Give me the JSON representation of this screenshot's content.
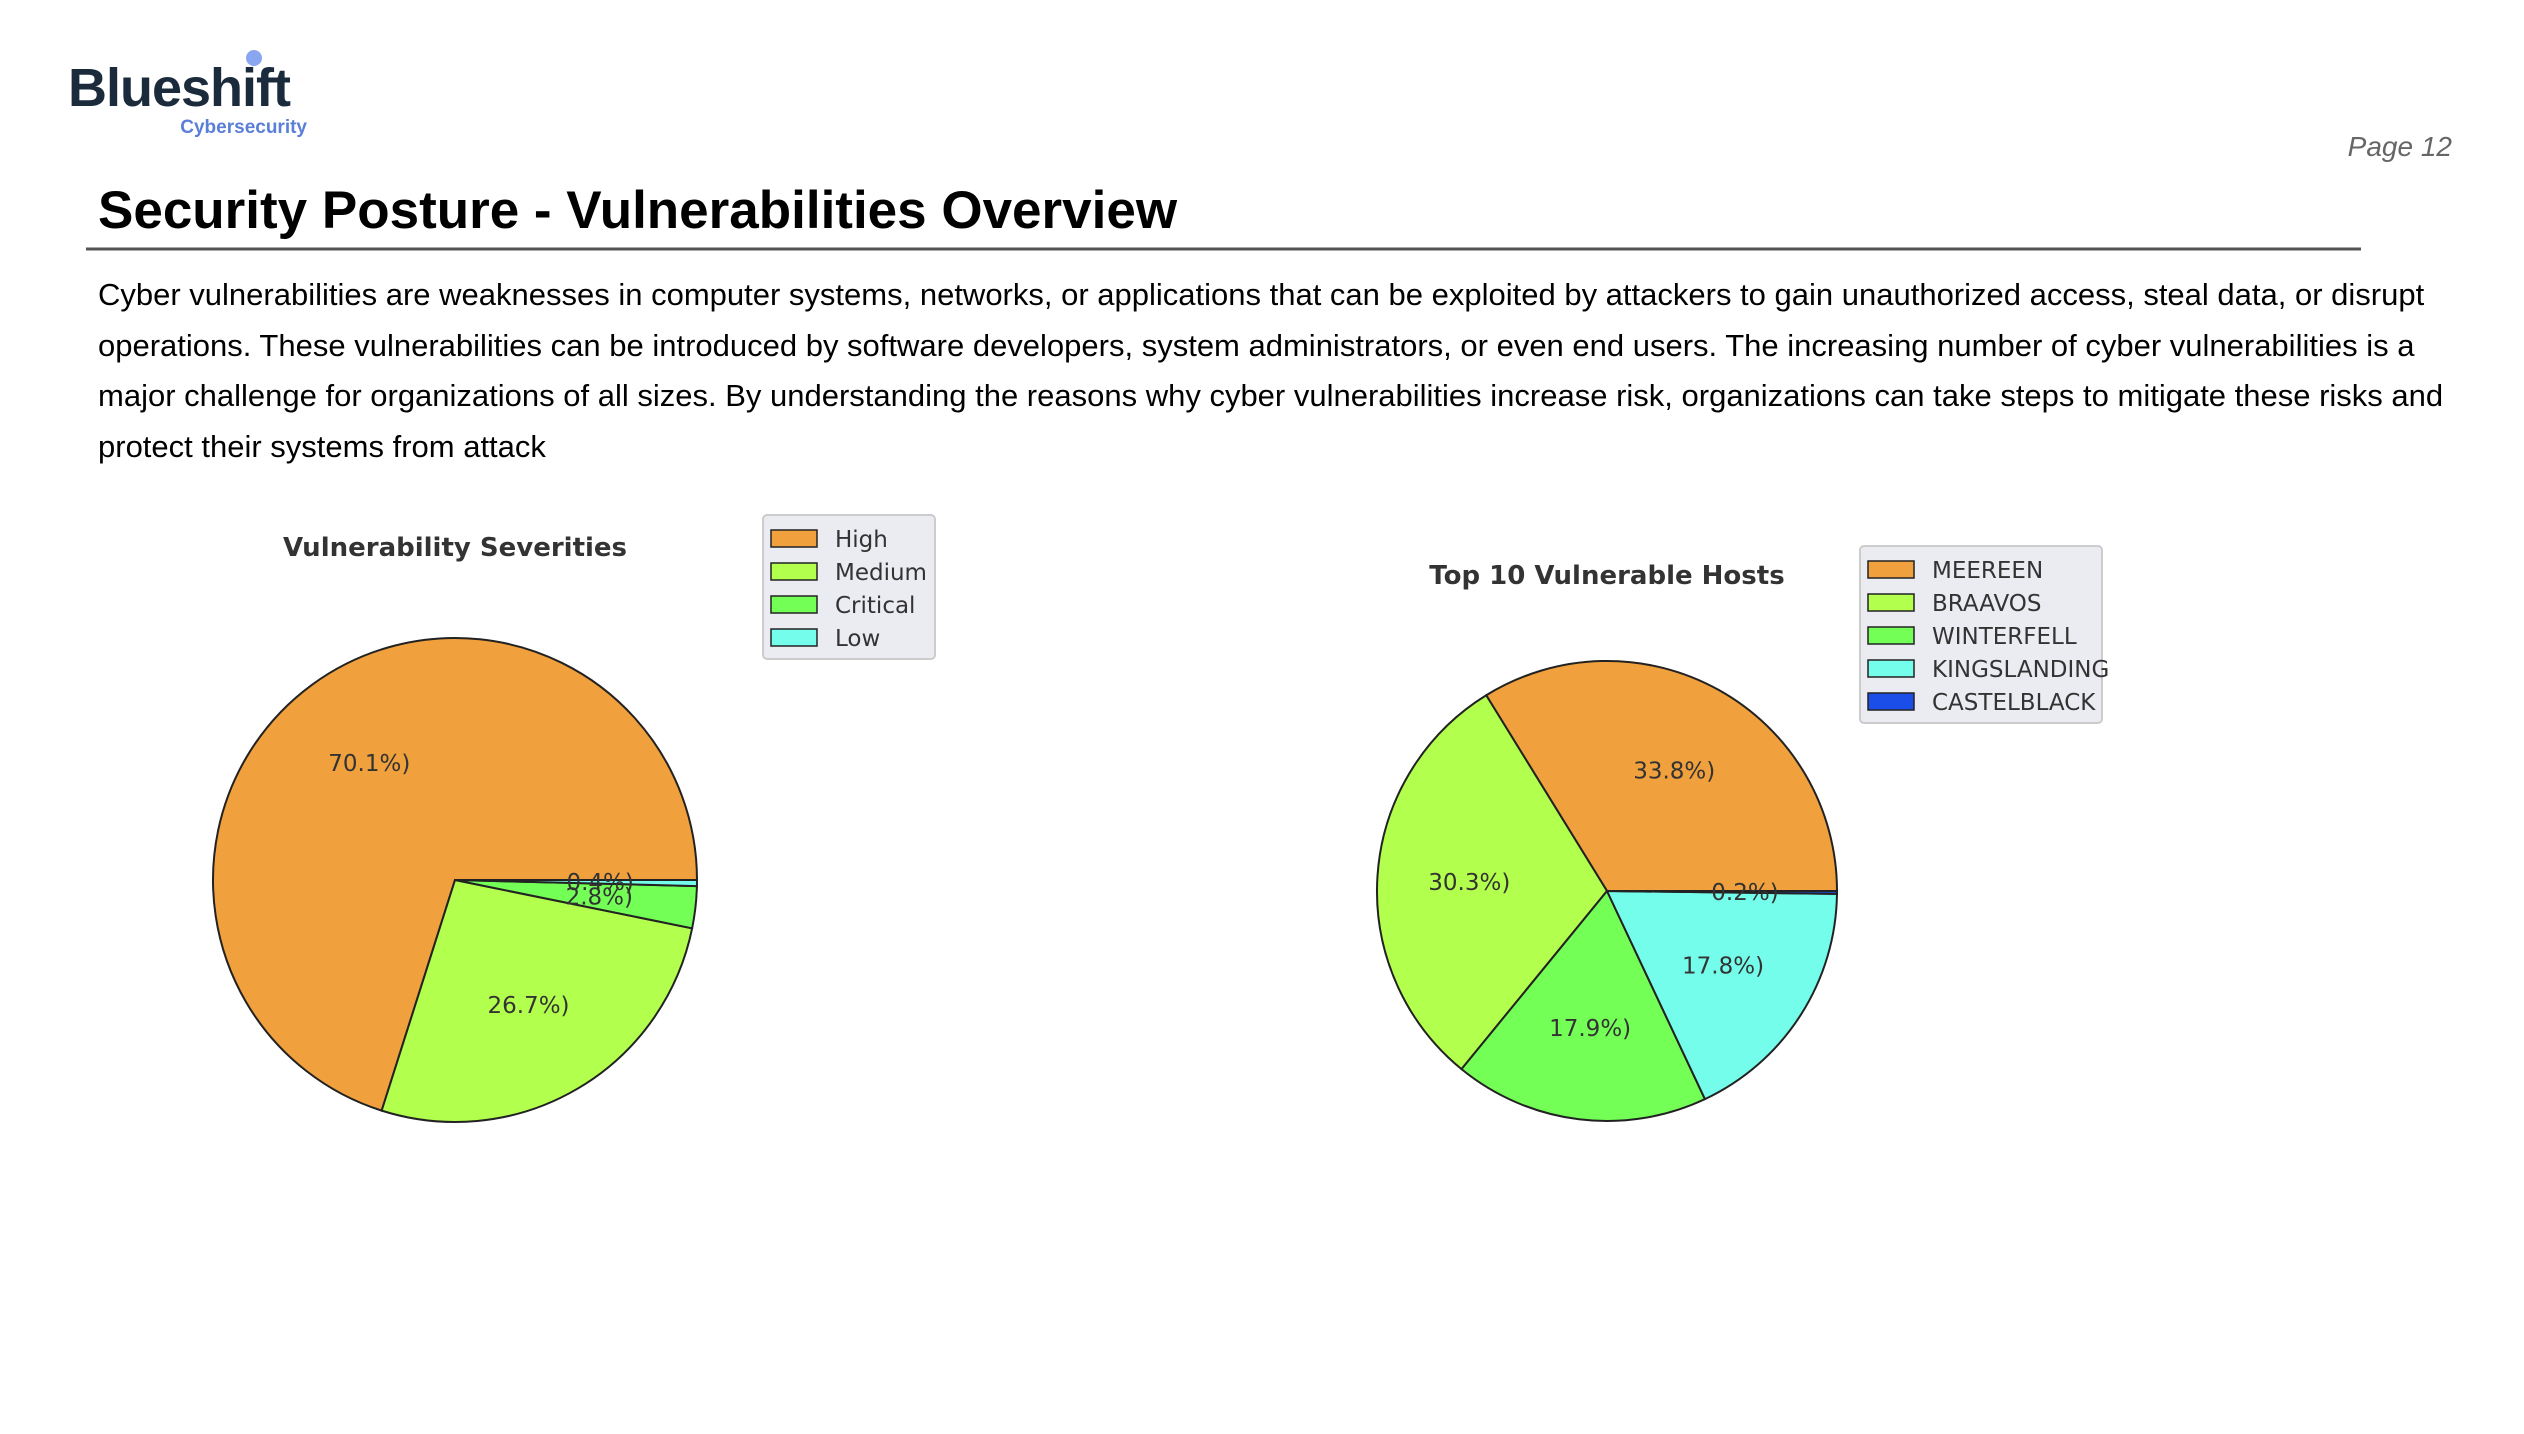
{
  "header": {
    "logo": "Blueshift",
    "logo_subtitle": "Cybersecurity",
    "page": "Page 12"
  },
  "title": "Security Posture - Vulnerabilities Overview",
  "paragraph": "Cyber vulnerabilities are weaknesses in computer systems, networks, or applications that can be exploited by attackers to gain unauthorized access, steal data, or disrupt operations. These vulnerabilities can be introduced by software developers, system administrators, or even end users. The increasing number of cyber vulnerabilities is a major challenge for organizations of all sizes. By understanding the reasons why cyber vulnerabilities increase risk, organizations can take steps to mitigate these risks and protect their systems from attack",
  "chart_data": [
    {
      "type": "pie",
      "title": "Vulnerability Severities",
      "categories": [
        "High",
        "Medium",
        "Critical",
        "Low"
      ],
      "values": [
        70.1,
        26.7,
        2.8,
        0.4
      ],
      "value_labels": [
        "70.1%)",
        "26.7%)",
        "2.8%)",
        "0.4%)"
      ],
      "colors": [
        "#f0a03c",
        "#b3ff4d",
        "#74ff57",
        "#74fdea"
      ]
    },
    {
      "type": "pie",
      "title": "Top 10 Vulnerable Hosts",
      "categories": [
        "MEEREEN",
        "BRAAVOS",
        "WINTERFELL",
        "KINGSLANDING",
        "CASTELBLACK"
      ],
      "values": [
        33.8,
        30.3,
        17.9,
        17.8,
        0.2
      ],
      "value_labels": [
        "33.8%)",
        "30.3%)",
        "17.9%)",
        "17.8%)",
        "0.2%)"
      ],
      "colors": [
        "#f0a03c",
        "#b3ff4d",
        "#74ff57",
        "#74fdea",
        "#1b4ee8"
      ]
    }
  ]
}
